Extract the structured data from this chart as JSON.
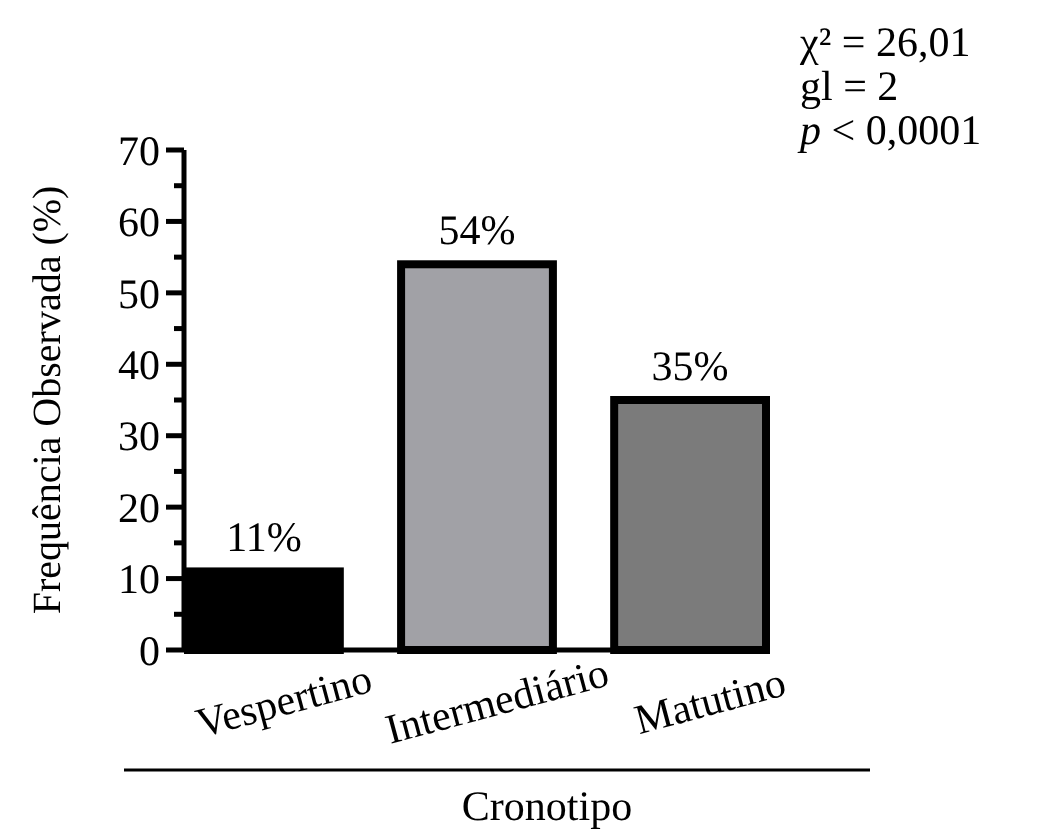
{
  "chart_data": {
    "type": "bar",
    "xlabel": "Cronotipo",
    "ylabel": "Frequência Observada (%)",
    "categories": [
      "Vespertino",
      "Intermediário",
      "Matutino"
    ],
    "values": [
      11,
      54,
      35
    ],
    "colors": [
      "#000000",
      "#a1a1a6",
      "#7b7b7b"
    ],
    "value_labels": [
      "11%",
      "54%",
      "35%"
    ],
    "ylim": [
      0,
      70
    ],
    "yticks": [
      0,
      {
        "value": 5,
        "label": null
      },
      10,
      {
        "value": 15,
        "label": null
      },
      20,
      {
        "value": 25,
        "label": null
      },
      30,
      {
        "value": 35,
        "label": null
      },
      40,
      {
        "value": 45,
        "label": null
      },
      50,
      {
        "value": 55,
        "label": null
      },
      60,
      {
        "value": 65,
        "label": null
      },
      70
    ],
    "annotations": [
      "χ² = 26,01",
      "gl = 2",
      "p < 0,0001"
    ],
    "grid": false
  }
}
